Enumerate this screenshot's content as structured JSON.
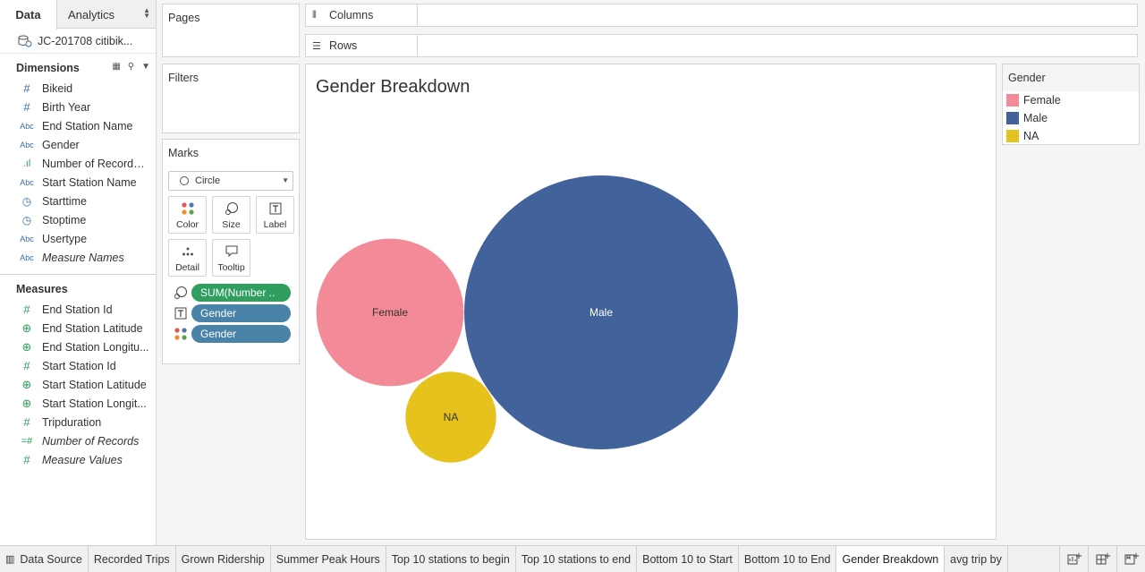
{
  "left_pane": {
    "tabs": {
      "data": "Data",
      "analytics": "Analytics"
    },
    "datasource": "JC-201708 citibik...",
    "dimensions_header": "Dimensions",
    "dimensions": [
      {
        "name": "Bikeid",
        "type": "#"
      },
      {
        "name": "Birth Year",
        "type": "#"
      },
      {
        "name": "End Station Name",
        "type": "Abc"
      },
      {
        "name": "Gender",
        "type": "Abc"
      },
      {
        "name": "Number of Records ...",
        "type": "bars"
      },
      {
        "name": "Start Station Name",
        "type": "Abc"
      },
      {
        "name": "Starttime",
        "type": "date"
      },
      {
        "name": "Stoptime",
        "type": "date"
      },
      {
        "name": "Usertype",
        "type": "Abc"
      },
      {
        "name": "Measure Names",
        "type": "Abc"
      }
    ],
    "measures_header": "Measures",
    "measures": [
      {
        "name": "End Station Id",
        "type": "#"
      },
      {
        "name": "End Station Latitude",
        "type": "globe"
      },
      {
        "name": "End Station Longitu...",
        "type": "globe"
      },
      {
        "name": "Start Station Id",
        "type": "#"
      },
      {
        "name": "Start Station Latitude",
        "type": "globe"
      },
      {
        "name": "Start Station Longit...",
        "type": "globe"
      },
      {
        "name": "Tripduration",
        "type": "#"
      },
      {
        "name": "Number of Records",
        "type": "=#"
      },
      {
        "name": "Measure Values",
        "type": "#"
      }
    ]
  },
  "cards": {
    "pages": "Pages",
    "filters": "Filters",
    "marks": "Marks",
    "mark_type": "Circle",
    "buttons": {
      "color": "Color",
      "size": "Size",
      "label": "Label",
      "detail": "Detail",
      "tooltip": "Tooltip"
    },
    "pills": {
      "size": "SUM(Number ..",
      "label": "Gender",
      "color": "Gender"
    }
  },
  "shelves": {
    "columns": "Columns",
    "rows": "Rows"
  },
  "view": {
    "title": "Gender Breakdown"
  },
  "legend": {
    "title": "Gender",
    "items": [
      {
        "label": "Female",
        "color": "#f28b97"
      },
      {
        "label": "Male",
        "color": "#41629a"
      },
      {
        "label": "NA",
        "color": "#e5c21c"
      }
    ]
  },
  "chart_data": {
    "type": "bubble",
    "title": "Gender Breakdown",
    "size_measure": "SUM(Number of Records)",
    "points": [
      {
        "label": "Female",
        "relative_size": 0.29,
        "color": "#f28b97"
      },
      {
        "label": "Male",
        "relative_size": 1.0,
        "color": "#41629a"
      },
      {
        "label": "NA",
        "relative_size": 0.11,
        "color": "#e5c21c"
      }
    ]
  },
  "tabs": [
    "Data Source",
    "Recorded Trips",
    "Grown Ridership",
    "Summer Peak Hours",
    "Top 10 stations to begin",
    "Top 10 stations to end",
    "Bottom 10 to Start",
    "Bottom 10 to End",
    "Gender Breakdown",
    "avg trip by"
  ],
  "active_tab": "Gender Breakdown"
}
